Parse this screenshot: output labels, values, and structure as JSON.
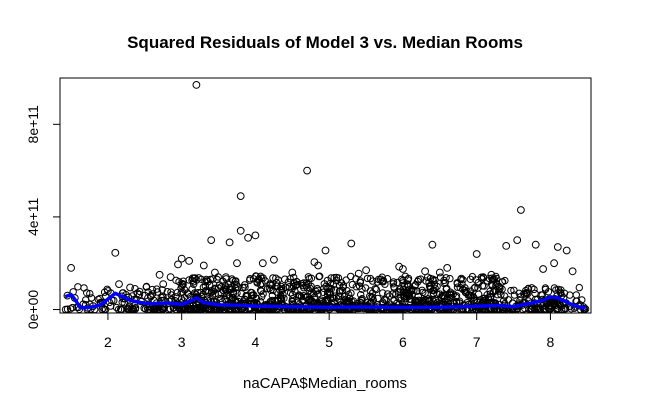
{
  "chart_data": {
    "type": "scatter",
    "title": "Squared Residuals of Model 3 vs. Median Rooms",
    "xlabel": "naCAPA$Median_rooms",
    "ylabel": "",
    "xlim": [
      1.35,
      8.55
    ],
    "ylim": [
      -15000000000.0,
      1000000000000.0
    ],
    "x_ticks": [
      2,
      3,
      4,
      5,
      6,
      7,
      8
    ],
    "x_tick_labels": [
      "2",
      "3",
      "4",
      "5",
      "6",
      "7",
      "8"
    ],
    "y_ticks": [
      0,
      400000000000,
      800000000000
    ],
    "y_tick_labels": [
      "0e+00",
      "4e+11",
      "8e+11"
    ],
    "grid": false,
    "legend": "none",
    "colors": {
      "points": "#000000",
      "smooth_line": "#0000ff"
    },
    "series": [
      {
        "type": "scatter",
        "points": [
          [
            3.2,
            970000000000
          ],
          [
            4.7,
            600000000000
          ],
          [
            3.8,
            490000000000
          ],
          [
            7.6,
            430000000000
          ],
          [
            3.8,
            340000000000
          ],
          [
            3.4,
            300000000000
          ],
          [
            3.65,
            290000000000
          ],
          [
            3.9,
            310000000000
          ],
          [
            4.0,
            320000000000
          ],
          [
            7.55,
            300000000000
          ],
          [
            7.8,
            280000000000
          ],
          [
            7.4,
            275000000000
          ],
          [
            5.3,
            285000000000
          ],
          [
            6.4,
            280000000000
          ],
          [
            8.1,
            270000000000
          ],
          [
            8.22,
            255000000000
          ],
          [
            2.1,
            245000000000
          ],
          [
            7.0,
            240000000000
          ],
          [
            4.95,
            255000000000
          ],
          [
            3.0,
            220000000000
          ],
          [
            3.1,
            210000000000
          ],
          [
            4.1,
            200000000000
          ],
          [
            4.25,
            215000000000
          ],
          [
            4.8,
            205000000000
          ],
          [
            4.85,
            190000000000
          ],
          [
            2.95,
            195000000000
          ],
          [
            3.3,
            190000000000
          ],
          [
            3.75,
            200000000000
          ],
          [
            5.95,
            185000000000
          ],
          [
            6.6,
            180000000000
          ],
          [
            7.9,
            175000000000
          ],
          [
            8.05,
            200000000000
          ],
          [
            8.3,
            165000000000
          ],
          [
            1.5,
            180000000000
          ],
          [
            5.5,
            170000000000
          ],
          [
            6.0,
            175000000000
          ],
          [
            6.3,
            165000000000
          ],
          [
            6.5,
            160000000000
          ],
          [
            7.2,
            150000000000
          ],
          [
            4.5,
            160000000000
          ],
          [
            5.4,
            155000000000
          ],
          [
            3.45,
            160000000000
          ],
          [
            2.7,
            150000000000
          ],
          [
            2.85,
            140000000000
          ],
          [
            1.45,
            60000000000
          ],
          [
            1.55,
            50000000000
          ],
          [
            1.7,
            20000000000
          ],
          [
            1.9,
            30000000000
          ],
          [
            2.0,
            80000000000
          ],
          [
            2.15,
            110000000000
          ],
          [
            2.3,
            95000000000
          ],
          [
            2.4,
            70000000000
          ],
          [
            2.5,
            60000000000
          ],
          [
            2.6,
            85000000000
          ],
          [
            1.8,
            15000000000
          ],
          [
            2.05,
            40000000000
          ],
          [
            8.4,
            20000000000
          ],
          [
            8.45,
            10000000000
          ],
          [
            8.35,
            35000000000
          ],
          [
            8.15,
            60000000000
          ],
          [
            7.7,
            90000000000
          ],
          [
            7.3,
            100000000000
          ],
          [
            6.8,
            110000000000
          ],
          [
            6.2,
            120000000000
          ],
          [
            5.7,
            130000000000
          ],
          [
            5.1,
            125000000000
          ],
          [
            4.4,
            130000000000
          ],
          [
            3.6,
            140000000000
          ],
          [
            3.15,
            135000000000
          ],
          [
            2.75,
            110000000000
          ],
          [
            2.2,
            70000000000
          ],
          [
            1.6,
            10000000000
          ]
        ]
      },
      {
        "type": "line",
        "name": "",
        "x": [
          1.42,
          1.5,
          1.56,
          1.62,
          1.7,
          1.8,
          1.9,
          2.0,
          2.1,
          2.2,
          2.3,
          2.45,
          2.6,
          2.8,
          3.0,
          3.1,
          3.2,
          3.3,
          3.5,
          3.8,
          4.0,
          4.5,
          5.0,
          5.5,
          6.0,
          6.5,
          7.0,
          7.3,
          7.5,
          7.7,
          7.9,
          8.0,
          8.1,
          8.2,
          8.3,
          8.4,
          8.48
        ],
        "y": [
          55000000000,
          65000000000,
          40000000000,
          10000000000,
          8000000000,
          12000000000,
          20000000000,
          45000000000,
          70000000000,
          55000000000,
          40000000000,
          30000000000,
          25000000000,
          28000000000,
          22000000000,
          35000000000,
          50000000000,
          30000000000,
          20000000000,
          18000000000,
          15000000000,
          12000000000,
          10000000000,
          11000000000,
          9000000000,
          10000000000,
          14000000000,
          18000000000,
          12000000000,
          25000000000,
          40000000000,
          55000000000,
          50000000000,
          35000000000,
          20000000000,
          10000000000,
          8000000000
        ]
      }
    ]
  }
}
